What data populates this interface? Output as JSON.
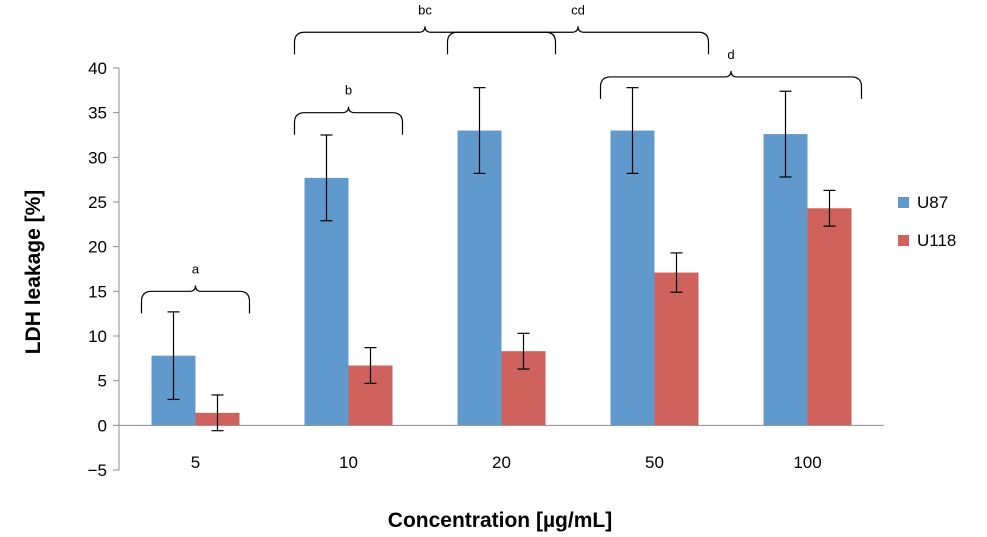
{
  "chart_data": {
    "type": "bar",
    "title": "",
    "xlabel": "Concentration [µg/mL]",
    "ylabel": "LDH leakage [%]",
    "ylim": [
      -5,
      40
    ],
    "yticks": [
      "−5",
      "0",
      "5",
      "10",
      "15",
      "20",
      "25",
      "30",
      "35",
      "40"
    ],
    "categories": [
      "5",
      "10",
      "20",
      "50",
      "100"
    ],
    "series": [
      {
        "name": "U87",
        "color": "#6099CC",
        "values": [
          7.8,
          27.7,
          33.0,
          33.0,
          32.6
        ],
        "errors": [
          4.9,
          4.8,
          4.8,
          4.8,
          4.8
        ]
      },
      {
        "name": "U118",
        "color": "#CF625C",
        "values": [
          1.4,
          6.7,
          8.3,
          17.1,
          24.3
        ],
        "errors": [
          2.0,
          2.0,
          2.0,
          2.2,
          2.0
        ]
      }
    ],
    "legend": {
      "position": "right"
    },
    "grid": false,
    "brackets": [
      {
        "label": "a",
        "from_category": 0,
        "to_category": 0,
        "level": 15.0
      },
      {
        "label": "b",
        "from_category": 1,
        "to_category": 1,
        "level": 35.0
      },
      {
        "label": "bc",
        "from_category": 1,
        "to_category": 2,
        "level": 44.0
      },
      {
        "label": "cd",
        "from_category": 2,
        "to_category": 3,
        "level": 44.0
      },
      {
        "label": "d",
        "from_category": 3,
        "to_category": 4,
        "level": 39.0
      }
    ]
  }
}
